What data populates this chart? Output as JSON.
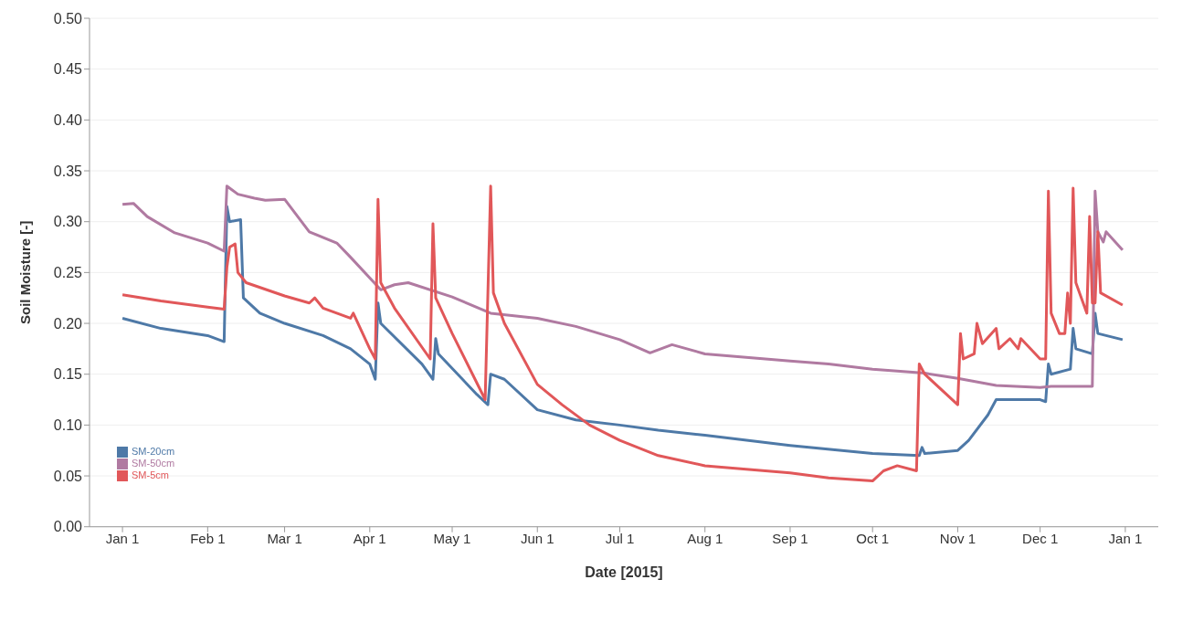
{
  "chart_data": {
    "type": "line",
    "xlabel": "Date [2015]",
    "ylabel": "Soil Moisture [-]",
    "xlim": [
      "2014-12-20",
      "2016-01-13"
    ],
    "xticks": [
      {
        "value": "2015-01-01",
        "label": "Jan 1"
      },
      {
        "value": "2015-02-01",
        "label": "Feb 1"
      },
      {
        "value": "2015-03-01",
        "label": "Mar 1"
      },
      {
        "value": "2015-04-01",
        "label": "Apr 1"
      },
      {
        "value": "2015-05-01",
        "label": "May 1"
      },
      {
        "value": "2015-06-01",
        "label": "Jun 1"
      },
      {
        "value": "2015-07-01",
        "label": "Jul 1"
      },
      {
        "value": "2015-08-01",
        "label": "Aug 1"
      },
      {
        "value": "2015-09-01",
        "label": "Sep 1"
      },
      {
        "value": "2015-10-01",
        "label": "Oct 1"
      },
      {
        "value": "2015-11-01",
        "label": "Nov 1"
      },
      {
        "value": "2015-12-01",
        "label": "Dec 1"
      },
      {
        "value": "2016-01-01",
        "label": "Jan 1"
      }
    ],
    "ylim": [
      0,
      0.5
    ],
    "yticks": [
      {
        "value": 0,
        "label": "0.00"
      },
      {
        "value": 0.05,
        "label": "0.05"
      },
      {
        "value": 0.1,
        "label": "0.10"
      },
      {
        "value": 0.15,
        "label": "0.15"
      },
      {
        "value": 0.2,
        "label": "0.20"
      },
      {
        "value": 0.25,
        "label": "0.25"
      },
      {
        "value": 0.3,
        "label": "0.30"
      },
      {
        "value": 0.35,
        "label": "0.35"
      },
      {
        "value": 0.4,
        "label": "0.40"
      },
      {
        "value": 0.45,
        "label": "0.45"
      },
      {
        "value": 0.5,
        "label": "0.50"
      }
    ],
    "grid": "y",
    "legend": "bottom left",
    "marker": "none",
    "line_style": "solid",
    "series": [
      {
        "name": "SM-20cm",
        "color": "#4e79a7",
        "x": [
          "2015-01-01",
          "2015-01-15",
          "2015-02-01",
          "2015-02-07",
          "2015-02-08",
          "2015-02-09",
          "2015-02-13",
          "2015-02-14",
          "2015-02-20",
          "2015-03-01",
          "2015-03-15",
          "2015-03-25",
          "2015-04-01",
          "2015-04-03",
          "2015-04-04",
          "2015-04-05",
          "2015-04-20",
          "2015-04-24",
          "2015-04-25",
          "2015-04-26",
          "2015-05-10",
          "2015-05-14",
          "2015-05-15",
          "2015-05-20",
          "2015-06-01",
          "2015-06-15",
          "2015-07-01",
          "2015-07-15",
          "2015-08-01",
          "2015-09-01",
          "2015-10-01",
          "2015-10-18",
          "2015-10-19",
          "2015-10-20",
          "2015-11-01",
          "2015-11-05",
          "2015-11-12",
          "2015-11-15",
          "2015-12-01",
          "2015-12-03",
          "2015-12-04",
          "2015-12-05",
          "2015-12-12",
          "2015-12-13",
          "2015-12-14",
          "2015-12-20",
          "2015-12-21",
          "2015-12-22",
          "2015-12-31"
        ],
        "values": [
          0.205,
          0.195,
          0.188,
          0.182,
          0.315,
          0.3,
          0.302,
          0.225,
          0.21,
          0.2,
          0.188,
          0.175,
          0.16,
          0.145,
          0.22,
          0.2,
          0.16,
          0.145,
          0.185,
          0.17,
          0.13,
          0.12,
          0.15,
          0.145,
          0.115,
          0.105,
          0.1,
          0.095,
          0.09,
          0.08,
          0.072,
          0.07,
          0.078,
          0.072,
          0.075,
          0.085,
          0.11,
          0.125,
          0.125,
          0.123,
          0.16,
          0.15,
          0.155,
          0.195,
          0.175,
          0.17,
          0.21,
          0.19,
          0.184
        ]
      },
      {
        "name": "SM-50cm",
        "color": "#b07aa1",
        "x": [
          "2015-01-01",
          "2015-01-05",
          "2015-01-10",
          "2015-01-20",
          "2015-02-01",
          "2015-02-07",
          "2015-02-08",
          "2015-02-12",
          "2015-02-18",
          "2015-02-22",
          "2015-03-01",
          "2015-03-10",
          "2015-03-20",
          "2015-03-25",
          "2015-04-05",
          "2015-04-10",
          "2015-04-15",
          "2015-05-01",
          "2015-05-15",
          "2015-06-01",
          "2015-06-15",
          "2015-07-01",
          "2015-07-12",
          "2015-07-20",
          "2015-08-01",
          "2015-09-01",
          "2015-09-15",
          "2015-10-01",
          "2015-10-20",
          "2015-11-01",
          "2015-11-15",
          "2015-12-01",
          "2015-12-05",
          "2015-12-20",
          "2015-12-21",
          "2015-12-22",
          "2015-12-24",
          "2015-12-25",
          "2015-12-31"
        ],
        "values": [
          0.317,
          0.318,
          0.305,
          0.289,
          0.279,
          0.271,
          0.335,
          0.327,
          0.323,
          0.321,
          0.322,
          0.29,
          0.279,
          0.265,
          0.233,
          0.238,
          0.24,
          0.226,
          0.21,
          0.205,
          0.197,
          0.184,
          0.171,
          0.179,
          0.17,
          0.163,
          0.16,
          0.155,
          0.151,
          0.146,
          0.139,
          0.137,
          0.138,
          0.138,
          0.33,
          0.29,
          0.28,
          0.29,
          0.272
        ]
      },
      {
        "name": "SM-5cm",
        "color": "#e15759",
        "x": [
          "2015-01-01",
          "2015-01-15",
          "2015-02-01",
          "2015-02-07",
          "2015-02-08",
          "2015-02-09",
          "2015-02-11",
          "2015-02-12",
          "2015-02-15",
          "2015-03-01",
          "2015-03-10",
          "2015-03-12",
          "2015-03-15",
          "2015-03-25",
          "2015-03-26",
          "2015-04-01",
          "2015-04-03",
          "2015-04-04",
          "2015-04-05",
          "2015-04-10",
          "2015-04-23",
          "2015-04-24",
          "2015-04-25",
          "2015-05-01",
          "2015-05-13",
          "2015-05-15",
          "2015-05-16",
          "2015-05-20",
          "2015-06-01",
          "2015-06-10",
          "2015-06-20",
          "2015-07-01",
          "2015-07-15",
          "2015-08-01",
          "2015-09-01",
          "2015-09-15",
          "2015-10-01",
          "2015-10-05",
          "2015-10-10",
          "2015-10-17",
          "2015-10-18",
          "2015-10-20",
          "2015-11-01",
          "2015-11-02",
          "2015-11-03",
          "2015-11-07",
          "2015-11-08",
          "2015-11-10",
          "2015-11-15",
          "2015-11-16",
          "2015-11-20",
          "2015-11-23",
          "2015-11-24",
          "2015-12-01",
          "2015-12-03",
          "2015-12-04",
          "2015-12-05",
          "2015-12-08",
          "2015-12-10",
          "2015-12-11",
          "2015-12-12",
          "2015-12-13",
          "2015-12-14",
          "2015-12-18",
          "2015-12-19",
          "2015-12-20",
          "2015-12-21",
          "2015-12-22",
          "2015-12-23",
          "2015-12-31"
        ],
        "values": [
          0.228,
          0.222,
          0.216,
          0.214,
          0.255,
          0.275,
          0.278,
          0.25,
          0.24,
          0.227,
          0.22,
          0.225,
          0.215,
          0.205,
          0.21,
          0.175,
          0.165,
          0.322,
          0.24,
          0.215,
          0.165,
          0.298,
          0.225,
          0.19,
          0.125,
          0.335,
          0.23,
          0.2,
          0.14,
          0.12,
          0.1,
          0.085,
          0.07,
          0.06,
          0.053,
          0.048,
          0.045,
          0.055,
          0.06,
          0.055,
          0.16,
          0.15,
          0.12,
          0.19,
          0.165,
          0.17,
          0.2,
          0.18,
          0.195,
          0.175,
          0.185,
          0.175,
          0.185,
          0.165,
          0.165,
          0.33,
          0.21,
          0.19,
          0.19,
          0.23,
          0.2,
          0.333,
          0.24,
          0.21,
          0.305,
          0.22,
          0.22,
          0.29,
          0.23,
          0.218
        ]
      }
    ]
  }
}
